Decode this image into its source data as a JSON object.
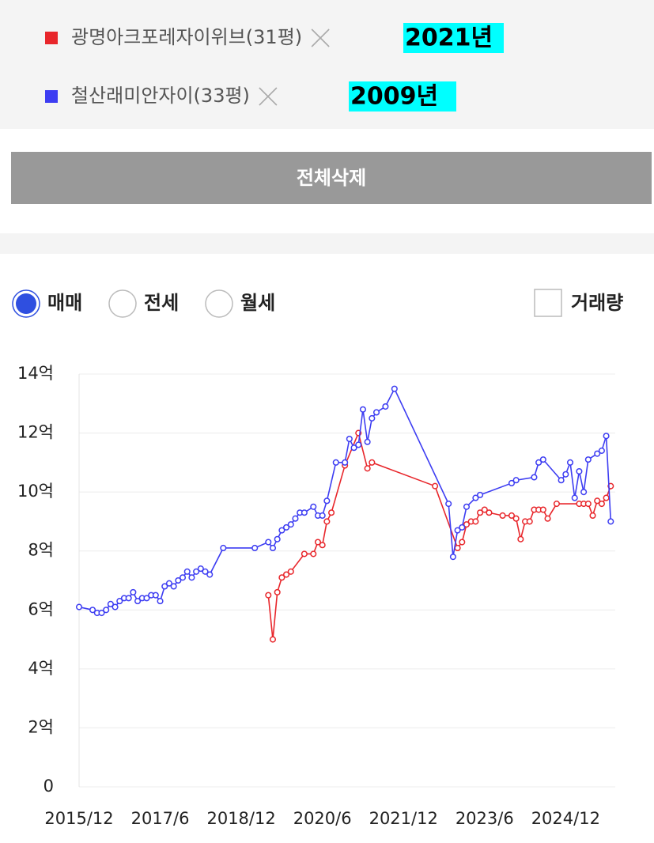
{
  "chart_data": {
    "type": "line",
    "series": [
      {
        "name": "광명아크포레자이위브(31평)",
        "color": "#e8262b",
        "x": [
          "2019/6",
          "2019/7",
          "2019/8",
          "2019/9",
          "2019/10",
          "2019/11",
          "2020/2",
          "2020/4",
          "2020/5",
          "2020/6",
          "2020/7",
          "2020/8",
          "2020/11",
          "2021/2",
          "2021/4",
          "2021/5",
          "2022/7",
          "2022/12",
          "2023/1",
          "2023/2",
          "2023/3",
          "2023/4",
          "2023/5",
          "2023/6",
          "2023/7",
          "2023/10",
          "2023/12",
          "2024/1",
          "2024/2",
          "2024/3",
          "2024/4",
          "2024/5",
          "2024/6",
          "2024/7",
          "2024/8",
          "2024/10",
          "2025/3",
          "2025/4",
          "2025/5",
          "2025/6",
          "2025/7",
          "2025/8",
          "2025/9",
          "2025/10"
        ],
        "values": [
          6.5,
          5.0,
          6.6,
          7.1,
          7.2,
          7.3,
          7.9,
          7.9,
          8.3,
          8.2,
          9.0,
          9.3,
          10.9,
          12.0,
          10.8,
          11.0,
          10.2,
          8.1,
          8.3,
          8.9,
          9.0,
          9.0,
          9.3,
          9.4,
          9.3,
          9.2,
          9.2,
          9.1,
          8.4,
          9.0,
          9.0,
          9.4,
          9.4,
          9.4,
          9.1,
          9.6,
          9.6,
          9.6,
          9.6,
          9.2,
          9.7,
          9.6,
          9.8,
          10.2
        ]
      },
      {
        "name": "철산래미안자이(33평)",
        "color": "#3d3df2",
        "x": [
          "2015/12",
          "2016/3",
          "2016/4",
          "2016/5",
          "2016/6",
          "2016/7",
          "2016/8",
          "2016/9",
          "2016/10",
          "2016/11",
          "2016/12",
          "2017/1",
          "2017/2",
          "2017/3",
          "2017/4",
          "2017/5",
          "2017/6",
          "2017/7",
          "2017/8",
          "2017/9",
          "2017/10",
          "2017/11",
          "2017/12",
          "2018/1",
          "2018/2",
          "2018/3",
          "2018/4",
          "2018/5",
          "2018/8",
          "2019/3",
          "2019/6",
          "2019/7",
          "2019/8",
          "2019/9",
          "2019/10",
          "2019/11",
          "2019/12",
          "2020/1",
          "2020/2",
          "2020/4",
          "2020/5",
          "2020/6",
          "2020/7",
          "2020/9",
          "2020/11",
          "2020/12",
          "2021/1",
          "2021/2",
          "2021/3",
          "2021/4",
          "2021/5",
          "2021/6",
          "2021/8",
          "2021/10",
          "2022/10",
          "2022/11",
          "2022/12",
          "2023/1",
          "2023/2",
          "2023/4",
          "2023/5",
          "2023/12",
          "2024/1",
          "2024/5",
          "2024/6",
          "2024/7",
          "2024/11",
          "2024/12",
          "2025/1",
          "2025/2",
          "2025/3",
          "2025/4",
          "2025/5",
          "2025/7",
          "2025/8",
          "2025/9",
          "2025/10"
        ],
        "values": [
          6.1,
          6.0,
          5.9,
          5.9,
          6.0,
          6.2,
          6.1,
          6.3,
          6.4,
          6.4,
          6.6,
          6.3,
          6.4,
          6.4,
          6.5,
          6.5,
          6.3,
          6.8,
          6.9,
          6.8,
          7.0,
          7.1,
          7.3,
          7.1,
          7.3,
          7.4,
          7.3,
          7.2,
          8.1,
          8.1,
          8.3,
          8.1,
          8.4,
          8.7,
          8.8,
          8.9,
          9.1,
          9.3,
          9.3,
          9.5,
          9.2,
          9.2,
          9.7,
          11.0,
          11.0,
          11.8,
          11.5,
          11.6,
          12.8,
          11.7,
          12.5,
          12.7,
          12.9,
          13.5,
          9.6,
          7.8,
          8.7,
          8.8,
          9.5,
          9.8,
          9.9,
          10.3,
          10.4,
          10.5,
          11.0,
          11.1,
          10.4,
          10.6,
          11.0,
          9.8,
          10.7,
          10.0,
          11.1,
          11.3,
          11.4,
          11.9,
          9.0
        ]
      }
    ],
    "annotations": [
      "2021년",
      "2009년"
    ],
    "xlim": [
      "2015/12",
      "2025/11"
    ],
    "xticks": [
      "2015/12",
      "2017/6",
      "2018/12",
      "2020/6",
      "2021/12",
      "2023/6",
      "2024/12"
    ],
    "ylim": [
      0,
      14
    ],
    "yticks": [
      0,
      {
        "value": 2,
        "label": "2억"
      },
      {
        "value": 4,
        "label": "4억"
      },
      {
        "value": 6,
        "label": "6억"
      },
      {
        "value": 8,
        "label": "8억"
      },
      {
        "value": 10,
        "label": "10억"
      },
      {
        "value": 12,
        "label": "12억"
      },
      {
        "value": 14,
        "label": "14억"
      }
    ],
    "grid": true
  },
  "controls": {
    "delete_all": "전체삭제",
    "trade_types": [
      "매매",
      "전세",
      "월세"
    ],
    "selected_trade_type": 0,
    "volume": "거래량"
  }
}
